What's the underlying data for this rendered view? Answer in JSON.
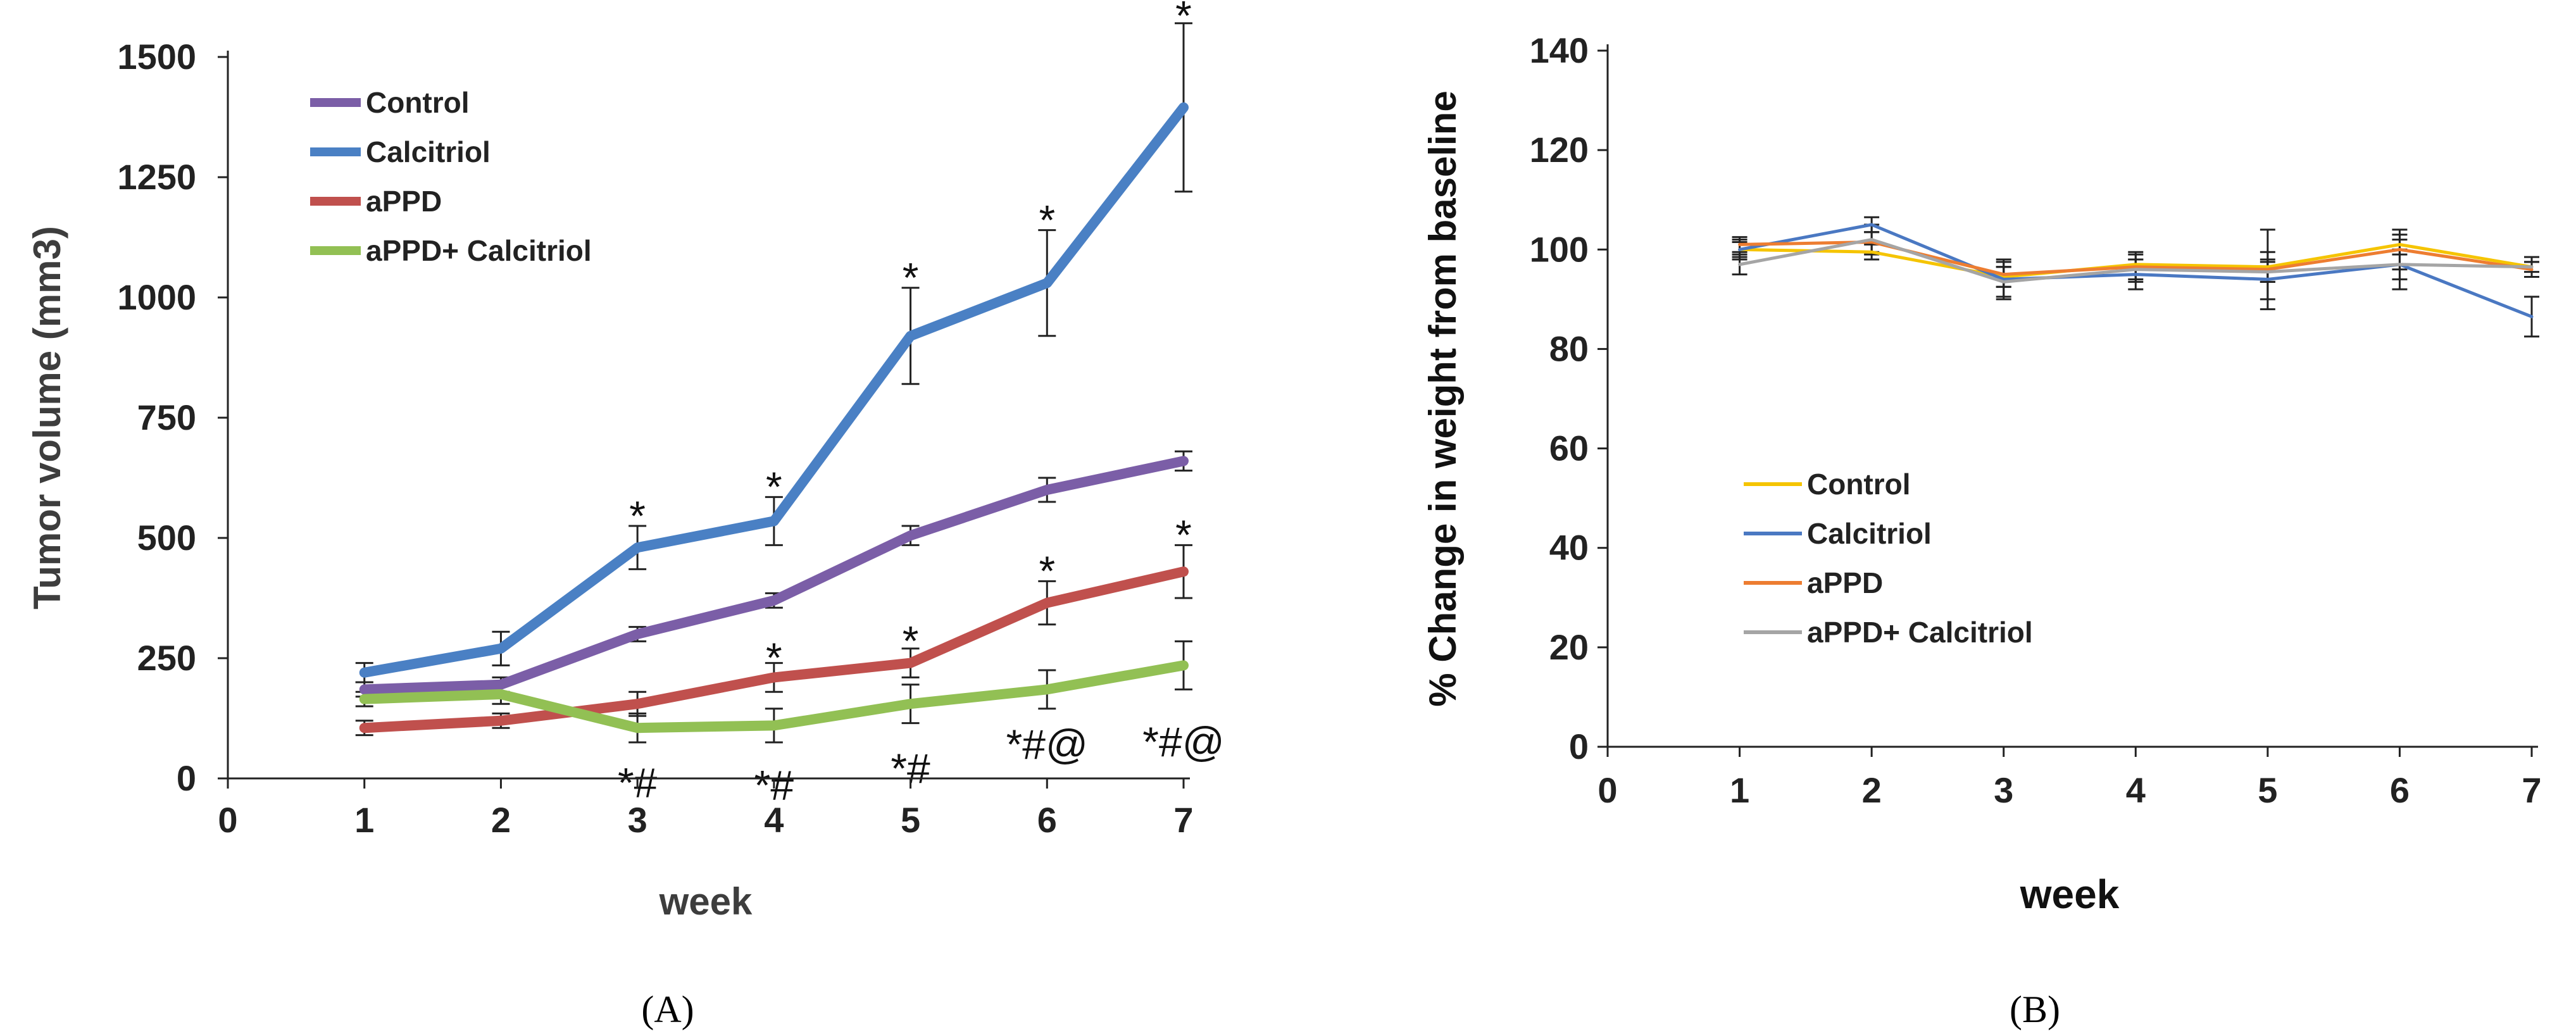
{
  "chart_data": [
    {
      "type": "line",
      "xlabel": "week",
      "ylabel": "Tumor volume (mm3)",
      "xlim": [
        0,
        7
      ],
      "ylim": [
        0,
        1500
      ],
      "x_ticks": [
        "0",
        "1",
        "2",
        "3",
        "4",
        "5",
        "6",
        "7"
      ],
      "y_ticks": [
        "0",
        "250",
        "500",
        "750",
        "1000",
        "1250",
        "1500"
      ],
      "y_tick_values": [
        0,
        250,
        500,
        750,
        1000,
        1250,
        1500
      ],
      "grid": false,
      "legend_position": "top-left",
      "x": [
        1,
        2,
        3,
        4,
        5,
        6,
        7
      ],
      "series": [
        {
          "name": "Control",
          "color": "#7b5ea7",
          "values": [
            185,
            195,
            300,
            370,
            505,
            600,
            660
          ],
          "errors": [
            15,
            15,
            15,
            15,
            20,
            25,
            20
          ]
        },
        {
          "name": "Calcitriol",
          "color": "#4a80c4",
          "values": [
            220,
            270,
            480,
            535,
            920,
            1030,
            1395
          ],
          "errors": [
            20,
            35,
            45,
            50,
            100,
            110,
            175
          ]
        },
        {
          "name": "aPPD",
          "color": "#c0504d",
          "values": [
            105,
            120,
            155,
            210,
            240,
            365,
            430
          ],
          "errors": [
            15,
            15,
            25,
            30,
            30,
            45,
            55
          ]
        },
        {
          "name": "aPPD+ Calcitriol",
          "color": "#92c054",
          "values": [
            165,
            175,
            105,
            110,
            155,
            185,
            235
          ],
          "errors": [
            15,
            20,
            30,
            35,
            40,
            40,
            50
          ]
        }
      ],
      "annotations": [
        {
          "x": 3,
          "y": 545,
          "text": "*",
          "color": "#111111"
        },
        {
          "x": 4,
          "y": 605,
          "text": "*",
          "color": "#111111"
        },
        {
          "x": 5,
          "y": 1040,
          "text": "*",
          "color": "#111111"
        },
        {
          "x": 6,
          "y": 1160,
          "text": "*",
          "color": "#111111"
        },
        {
          "x": 7,
          "y": 1585,
          "text": "*",
          "color": "#aaaaaa"
        },
        {
          "x": 4,
          "y": 250,
          "text": "*",
          "color": "#111111"
        },
        {
          "x": 5,
          "y": 285,
          "text": "*",
          "color": "#111111"
        },
        {
          "x": 6,
          "y": 430,
          "text": "*",
          "color": "#111111"
        },
        {
          "x": 7,
          "y": 505,
          "text": "*",
          "color": "#111111"
        },
        {
          "x": 3,
          "y": -10,
          "text": "*#",
          "color": "#111111"
        },
        {
          "x": 4,
          "y": -15,
          "text": "*#",
          "color": "#111111"
        },
        {
          "x": 5,
          "y": 20,
          "text": "*#",
          "color": "#111111"
        },
        {
          "x": 6,
          "y": 70,
          "text": "*#@",
          "color": "#111111"
        },
        {
          "x": 7,
          "y": 75,
          "text": "*#@",
          "color": "#111111"
        }
      ],
      "panel_label": "(A)"
    },
    {
      "type": "line",
      "xlabel": "week",
      "ylabel": "% Change in weight from baseline",
      "xlim": [
        0,
        7
      ],
      "ylim": [
        0,
        140
      ],
      "x_ticks": [
        "0",
        "1",
        "2",
        "3",
        "4",
        "5",
        "6",
        "7"
      ],
      "y_ticks": [
        "0",
        "20",
        "40",
        "60",
        "80",
        "100",
        "120",
        "140"
      ],
      "y_tick_values": [
        0,
        20,
        40,
        60,
        80,
        100,
        120,
        140
      ],
      "grid": false,
      "legend_position": "bottom-left",
      "x": [
        1,
        2,
        3,
        4,
        5,
        6,
        7
      ],
      "series": [
        {
          "name": "Control",
          "color": "#f5c400",
          "values": [
            100,
            99.5,
            94.5,
            97,
            96.5,
            101,
            96.5
          ],
          "errors": [
            1.5,
            1.5,
            2,
            2,
            3,
            2,
            1
          ]
        },
        {
          "name": "Calcitriol",
          "color": "#4a78c2",
          "values": [
            100,
            105,
            94,
            95,
            94,
            97,
            86.5
          ],
          "errors": [
            2,
            1.5,
            4,
            3,
            4,
            5,
            4
          ]
        },
        {
          "name": "aPPD",
          "color": "#ed7d31",
          "values": [
            101,
            101.5,
            95,
            96.5,
            96,
            100,
            96
          ],
          "errors": [
            1.5,
            2,
            2.5,
            3,
            8,
            4,
            1.5
          ]
        },
        {
          "name": "aPPD+ Calcitriol",
          "color": "#a5a5a5",
          "values": [
            97,
            102,
            93.5,
            96,
            95.5,
            97,
            96.5
          ],
          "errors": [
            2,
            3,
            3,
            2,
            2,
            3,
            2
          ]
        }
      ],
      "panel_label": "(B)"
    }
  ]
}
